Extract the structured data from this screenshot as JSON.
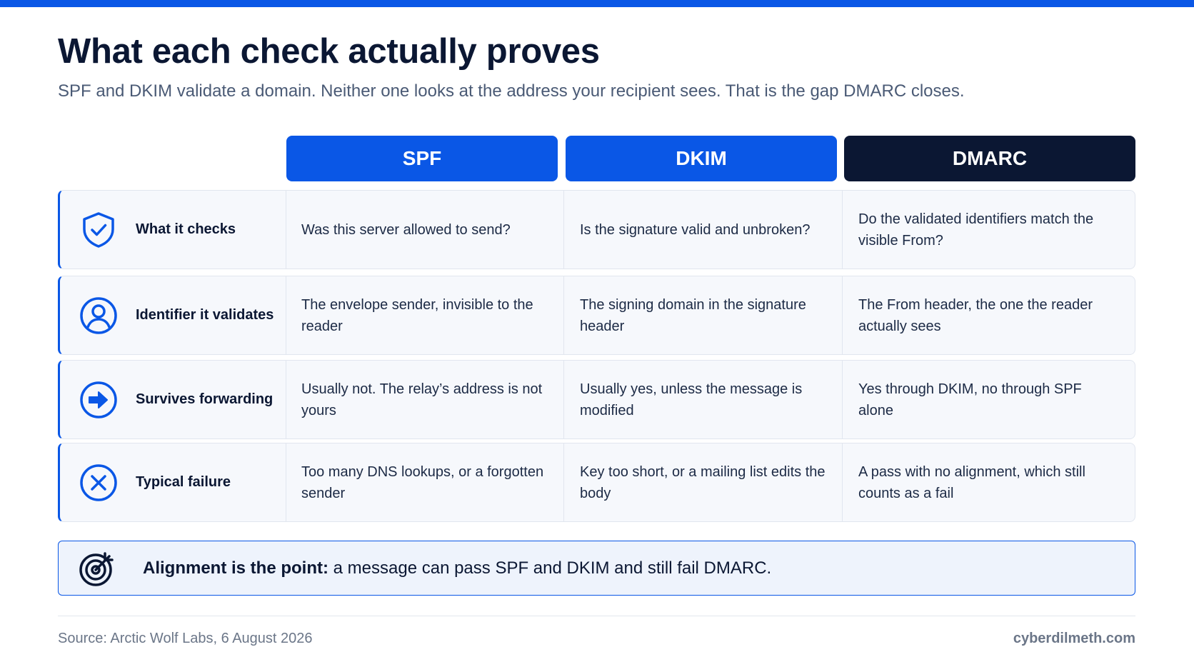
{
  "title": "What each check actually proves",
  "subtitle": "SPF and DKIM validate a domain. Neither one looks at the address your recipient sees. That is the gap DMARC closes.",
  "columns": [
    "SPF",
    "DKIM",
    "DMARC"
  ],
  "rows": [
    {
      "icon": "shield-check-icon",
      "label": "What it checks",
      "spf": "Was this server allowed to send?",
      "dkim": "Is the signature valid and unbroken?",
      "dmarc": "Do the validated identifiers match the visible From?"
    },
    {
      "icon": "user-icon",
      "label": "Identifier it validates",
      "spf": "The envelope sender, invisible to the reader",
      "dkim": "The signing domain in the signature header",
      "dmarc": "The From header, the one the reader actually sees"
    },
    {
      "icon": "arrow-right-circle-icon",
      "label": "Survives forwarding",
      "spf": "Usually not. The relay’s address is not yours",
      "dkim": "Usually yes, unless the message is modified",
      "dmarc": "Yes through DKIM, no through SPF alone"
    },
    {
      "icon": "x-circle-icon",
      "label": "Typical failure",
      "spf": "Too many DNS lookups, or a forgotten sender",
      "dkim": "Key too short, or a mailing list edits the body",
      "dmarc": "A pass with no alignment, which still counts as a fail"
    }
  ],
  "callout": {
    "icon": "target-icon",
    "bold": "Alignment is the point:",
    "text": " a message can pass SPF and DKIM and still fail DMARC."
  },
  "footer": {
    "source": "Source: Arctic Wolf Labs, 6 August 2026",
    "brand": "cyberdilmeth.com"
  },
  "colors": {
    "accent": "#0a57e6",
    "dark": "#0b1733",
    "row_bg": "#f6f8fc"
  }
}
